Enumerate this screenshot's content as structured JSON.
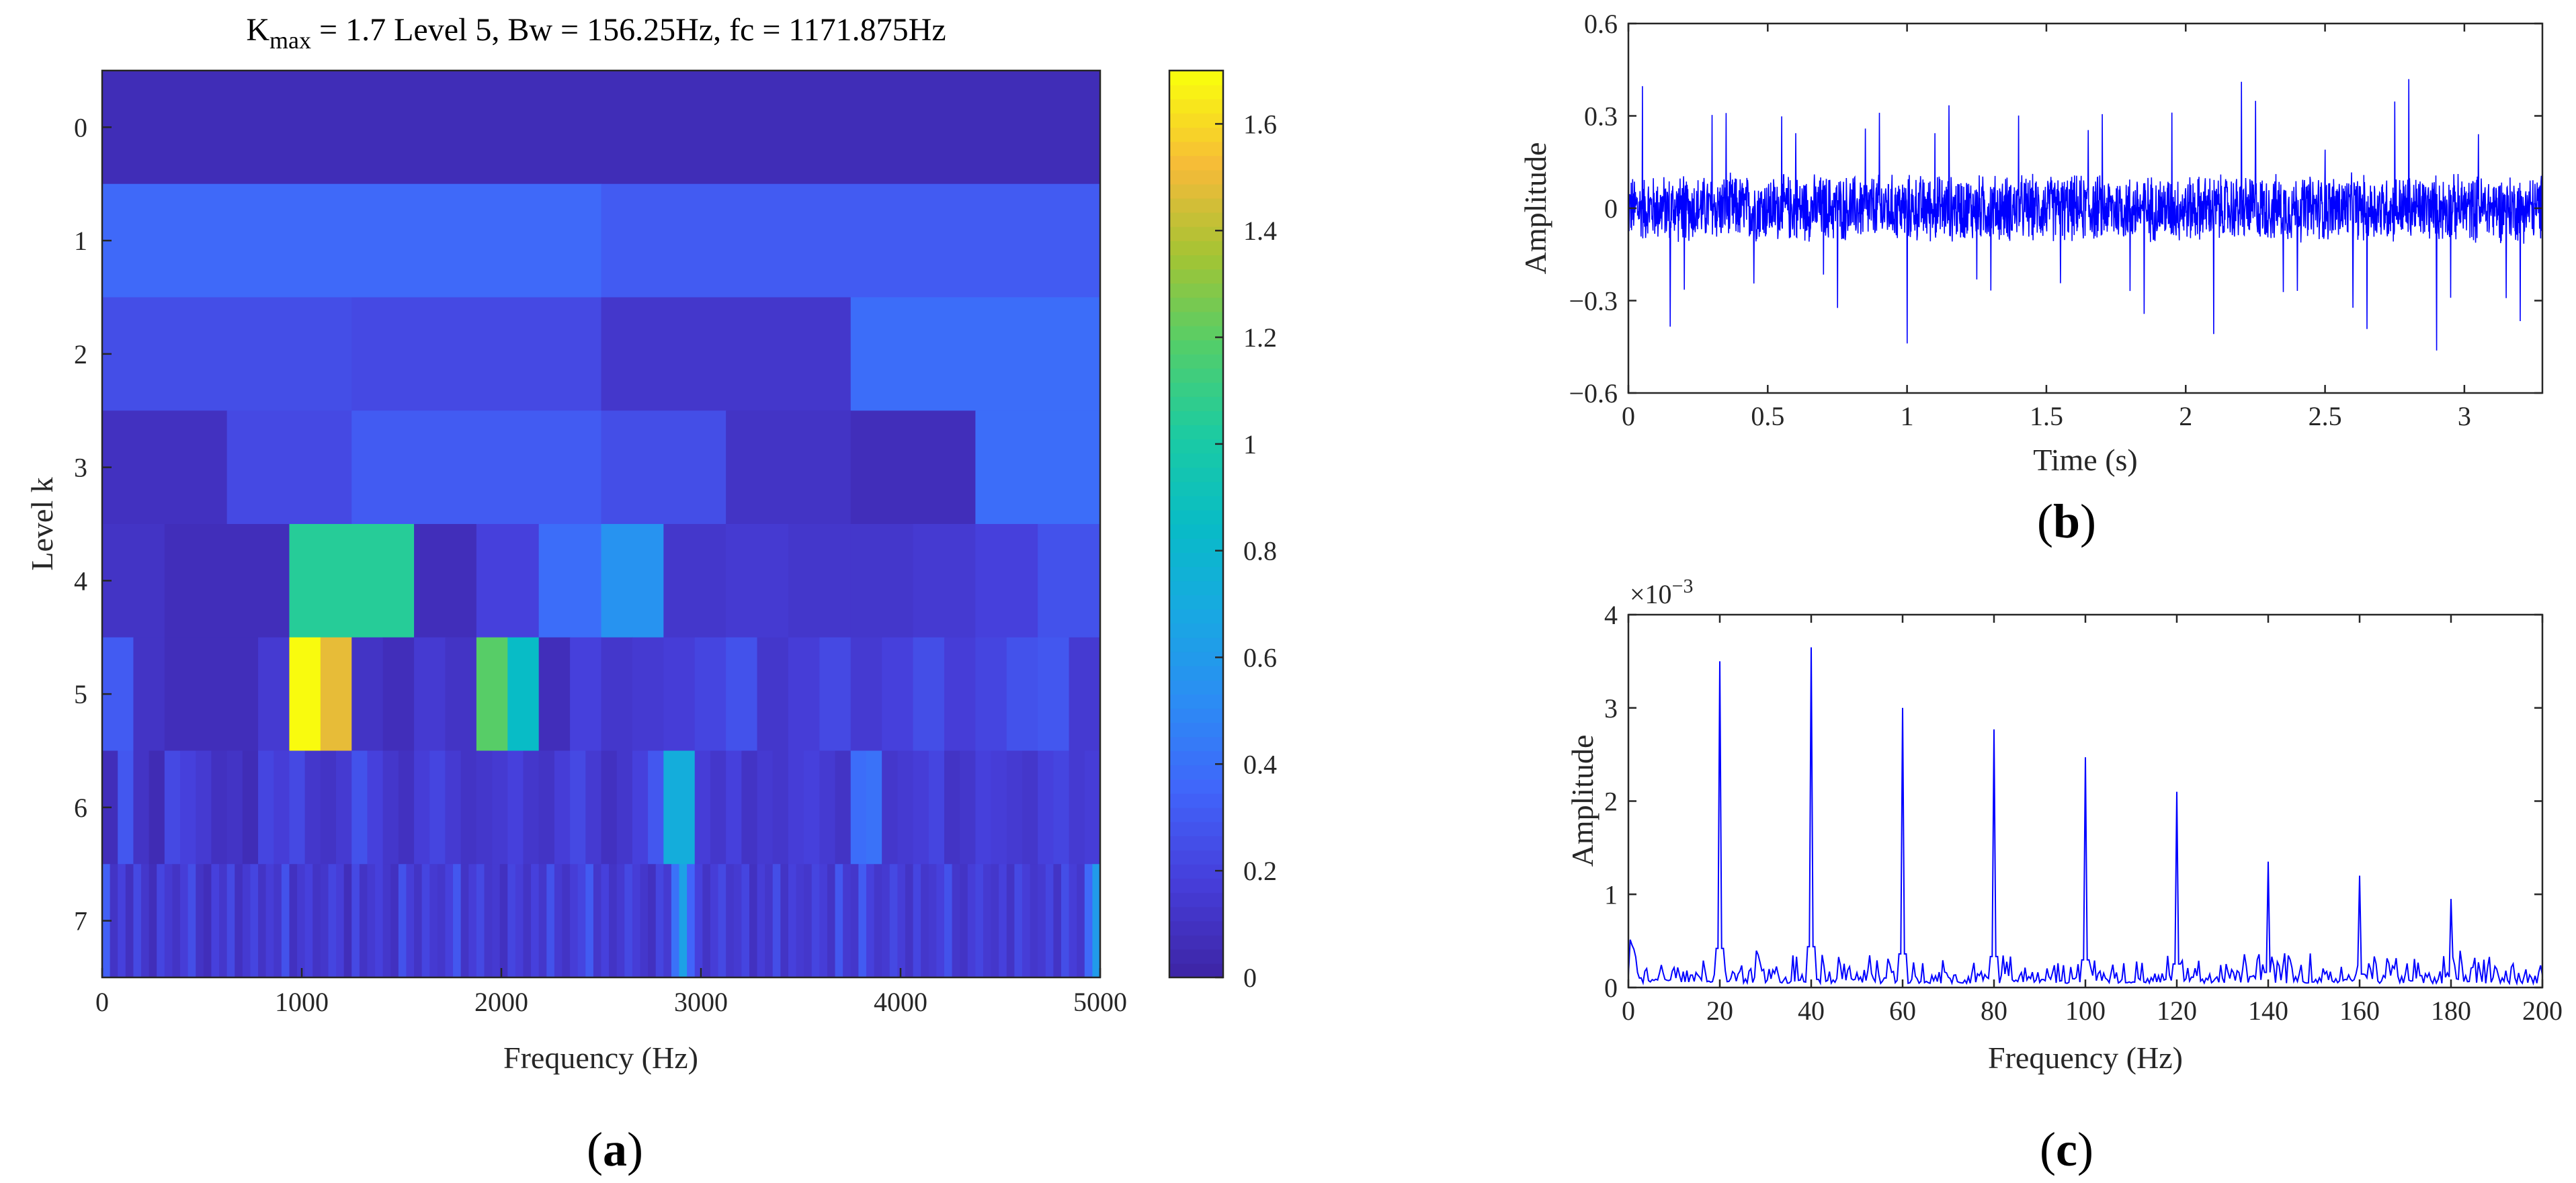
{
  "panels": {
    "a": {
      "label_open": "(",
      "label_letter": "a",
      "label_close": ")"
    },
    "b": {
      "label_open": "(",
      "label_letter": "b",
      "label_close": ")"
    },
    "c": {
      "label_open": "(",
      "label_letter": "c",
      "label_close": ")"
    }
  },
  "chart_data": [
    {
      "id": "kurtogram",
      "type": "heatmap",
      "title": "K = 1.7 Level 5, Bw = 156.25Hz, fc = 1171.875Hz",
      "title_parts": {
        "k": "K",
        "k_sub": "max",
        "rest": " = 1.7 Level 5, Bw = 156.25Hz, fc = 1171.875Hz"
      },
      "xlabel": "Frequency (Hz)",
      "ylabel": "Level k",
      "xlim": [
        0,
        5000
      ],
      "xticks": [
        "0",
        "1000",
        "2000",
        "3000",
        "4000",
        "5000"
      ],
      "yticks": [
        "0",
        "1",
        "2",
        "3",
        "4",
        "5",
        "6",
        "7"
      ],
      "colorbar": {
        "range": [
          0,
          1.7
        ],
        "ticks": [
          "0",
          "0.2",
          "0.4",
          "0.6",
          "0.8",
          "1",
          "1.2",
          "1.4",
          "1.6"
        ],
        "colormap": "parula"
      },
      "levels": [
        {
          "level": "0",
          "values": [
            0.05
          ]
        },
        {
          "level": "1",
          "values": [
            0.36,
            0.3
          ]
        },
        {
          "level": "2",
          "values": [
            0.24,
            0.22,
            0.12,
            0.38
          ]
        },
        {
          "level": "3",
          "values": [
            0.08,
            0.22,
            0.3,
            0.3,
            0.24,
            0.1,
            0.06,
            0.38
          ]
        },
        {
          "level": "4",
          "values": [
            0.1,
            0.06,
            0.06,
            1.05,
            1.05,
            0.06,
            0.18,
            0.38,
            0.55,
            0.12,
            0.14,
            0.12,
            0.12,
            0.14,
            0.18,
            0.26
          ]
        },
        {
          "level": "5",
          "values": [
            0.3,
            0.1,
            0.06,
            0.06,
            0.06,
            0.14,
            1.7,
            1.5,
            0.1,
            0.06,
            0.14,
            0.1,
            1.2,
            0.85,
            0.06,
            0.18,
            0.12,
            0.14,
            0.16,
            0.2,
            0.26,
            0.12,
            0.16,
            0.22,
            0.14,
            0.18,
            0.24,
            0.16,
            0.2,
            0.26,
            0.28,
            0.14
          ]
        },
        {
          "level": "6",
          "values": [
            0.06,
            0.28,
            0.1,
            0.04,
            0.22,
            0.18,
            0.14,
            0.08,
            0.1,
            0.05,
            0.2,
            0.16,
            0.22,
            0.12,
            0.1,
            0.14,
            0.26,
            0.18,
            0.12,
            0.08,
            0.16,
            0.2,
            0.14,
            0.1,
            0.12,
            0.14,
            0.18,
            0.12,
            0.1,
            0.16,
            0.22,
            0.14,
            0.08,
            0.12,
            0.18,
            0.28,
            0.72,
            0.72,
            0.16,
            0.12,
            0.18,
            0.1,
            0.14,
            0.12,
            0.16,
            0.18,
            0.14,
            0.1,
            0.38,
            0.4,
            0.12,
            0.14,
            0.16,
            0.2,
            0.1,
            0.12,
            0.18,
            0.16,
            0.14,
            0.12,
            0.18,
            0.2,
            0.14,
            0.16
          ]
        },
        {
          "level": "7",
          "values": [
            0.32,
            0.1,
            0.18,
            0.08,
            0.22,
            0.12,
            0.06,
            0.2,
            0.14,
            0.1,
            0.16,
            0.24,
            0.1,
            0.06,
            0.18,
            0.12,
            0.22,
            0.08,
            0.14,
            0.2,
            0.1,
            0.16,
            0.12,
            0.26,
            0.08,
            0.14,
            0.18,
            0.1,
            0.12,
            0.2,
            0.16,
            0.06,
            0.22,
            0.1,
            0.14,
            0.18,
            0.12,
            0.08,
            0.26,
            0.16,
            0.1,
            0.2,
            0.14,
            0.12,
            0.18,
            0.28,
            0.1,
            0.16,
            0.22,
            0.12,
            0.14,
            0.08,
            0.2,
            0.16,
            0.1,
            0.18,
            0.12,
            0.26,
            0.14,
            0.1,
            0.16,
            0.2,
            0.3,
            0.12,
            0.18,
            0.1,
            0.14,
            0.22,
            0.16,
            0.12,
            0.08,
            0.2,
            0.14,
            0.4,
            0.64,
            0.34,
            0.18,
            0.1,
            0.16,
            0.22,
            0.12,
            0.14,
            0.2,
            0.08,
            0.16,
            0.12,
            0.24,
            0.1,
            0.18,
            0.14,
            0.12,
            0.2,
            0.16,
            0.1,
            0.28,
            0.14,
            0.12,
            0.3,
            0.18,
            0.12,
            0.14,
            0.22,
            0.16,
            0.1,
            0.2,
            0.12,
            0.14,
            0.18,
            0.26,
            0.12,
            0.1,
            0.16,
            0.2,
            0.14,
            0.12,
            0.18,
            0.1,
            0.22,
            0.16,
            0.12,
            0.14,
            0.2,
            0.1,
            0.24,
            0.16,
            0.12,
            0.36,
            0.6
          ]
        }
      ]
    },
    {
      "id": "time-signal",
      "type": "line",
      "xlabel": "Time (s)",
      "ylabel": "Amplitude",
      "xlim": [
        0,
        3.28
      ],
      "ylim": [
        -0.6,
        0.6
      ],
      "xticks": [
        "0",
        "0.5",
        "1",
        "1.5",
        "2",
        "2.5",
        "3"
      ],
      "xtick_values": [
        0,
        0.5,
        1,
        1.5,
        2,
        2.5,
        3
      ],
      "yticks": [
        "0.6",
        "0.3",
        "0",
        "−0.3",
        "−0.6"
      ],
      "ytick_values": [
        0.6,
        0.3,
        0,
        -0.3,
        -0.6
      ],
      "series": [
        {
          "color": "#0000ff",
          "description_values": {
            "impulse_period_s": 0.05,
            "noise_amplitude": 0.12,
            "impulse_peak_range": [
              0.3,
              0.5
            ]
          }
        }
      ]
    },
    {
      "id": "envelope-spectrum",
      "type": "line",
      "xlabel": "Frequency (Hz)",
      "ylabel": "Amplitude",
      "exponent_base": "×10",
      "exponent_power": "−3",
      "xlim": [
        0,
        200
      ],
      "ylim": [
        0,
        4
      ],
      "xticks": [
        "0",
        "20",
        "40",
        "60",
        "80",
        "100",
        "120",
        "140",
        "160",
        "180",
        "200"
      ],
      "xtick_values": [
        0,
        20,
        40,
        60,
        80,
        100,
        120,
        140,
        160,
        180,
        200
      ],
      "yticks": [
        "4",
        "3",
        "2",
        "1",
        "0"
      ],
      "ytick_values": [
        4,
        3,
        2,
        1,
        0
      ],
      "peaks": [
        {
          "x": 20,
          "y": 3.5
        },
        {
          "x": 40,
          "y": 3.65
        },
        {
          "x": 60,
          "y": 3.0
        },
        {
          "x": 80,
          "y": 2.77
        },
        {
          "x": 100,
          "y": 2.47
        },
        {
          "x": 120,
          "y": 2.1
        },
        {
          "x": 140,
          "y": 1.35
        },
        {
          "x": 160,
          "y": 1.2
        },
        {
          "x": 180,
          "y": 0.95
        }
      ],
      "series": [
        {
          "color": "#0000ff",
          "noise_floor": 0.3
        }
      ]
    }
  ]
}
